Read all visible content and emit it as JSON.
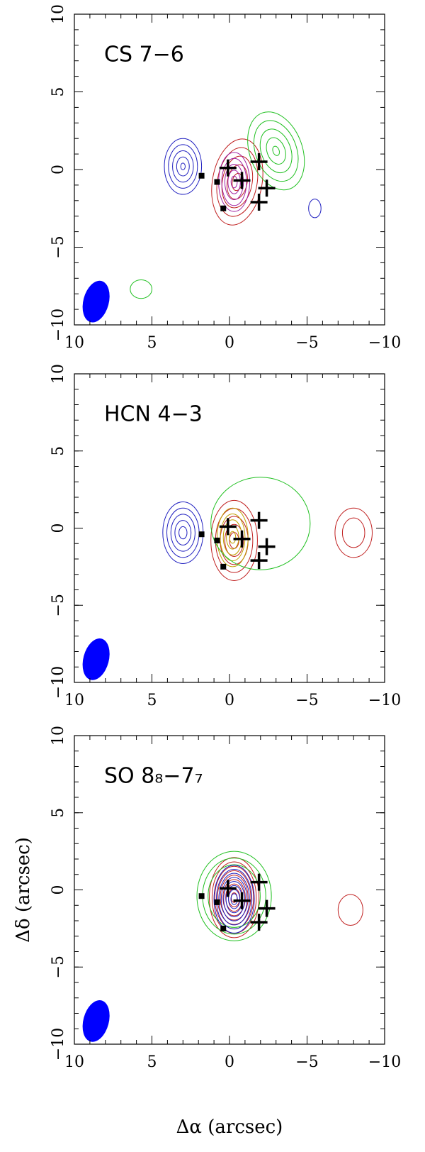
{
  "chart_data": [
    {
      "type": "scatter",
      "title": "CS 7−6",
      "xlim": [
        10,
        -10
      ],
      "ylim": [
        -10,
        10
      ],
      "xticks": [
        10,
        5,
        0,
        {
          "value": -5,
          "label": "−5"
        },
        {
          "value": -10,
          "label": "−10"
        }
      ],
      "yticks": [
        {
          "value": -10,
          "label": "−10"
        },
        {
          "value": -5,
          "label": "−5"
        },
        0,
        5,
        10
      ],
      "series": [
        {
          "marker": "square",
          "color": "#000000",
          "x": [
            1.8,
            0.8,
            0.4
          ],
          "y": [
            -0.4,
            -0.8,
            -2.5
          ]
        },
        {
          "marker": "cross",
          "color": "#000000",
          "x": [
            0.1,
            -0.8,
            -1.9,
            -2.4,
            -1.9
          ],
          "y": [
            0.1,
            -0.7,
            0.5,
            -1.2,
            -2.1
          ]
        }
      ]
    },
    {
      "type": "scatter",
      "title": "HCN 4−3",
      "xlim": [
        10,
        -10
      ],
      "ylim": [
        -10,
        10
      ],
      "xticks": [
        10,
        5,
        0,
        {
          "value": -5,
          "label": "−5"
        },
        {
          "value": -10,
          "label": "−10"
        }
      ],
      "yticks": [
        {
          "value": -10,
          "label": "−10"
        },
        {
          "value": -5,
          "label": "−5"
        },
        0,
        5,
        10
      ],
      "series": [
        {
          "marker": "square",
          "color": "#000000",
          "x": [
            1.8,
            0.8,
            0.4
          ],
          "y": [
            -0.4,
            -0.8,
            -2.5
          ]
        },
        {
          "marker": "cross",
          "color": "#000000",
          "x": [
            0.1,
            -0.8,
            -1.9,
            -2.4,
            -1.9
          ],
          "y": [
            0.1,
            -0.7,
            0.5,
            -1.2,
            -2.1
          ]
        }
      ]
    },
    {
      "type": "scatter",
      "title": "SO 8₈−7₇",
      "xlabel": "Δα (arcsec)",
      "ylabel": "Δδ (arcsec)",
      "xlim": [
        10,
        -10
      ],
      "ylim": [
        -10,
        10
      ],
      "xticks": [
        10,
        5,
        0,
        {
          "value": -5,
          "label": "−5"
        },
        {
          "value": -10,
          "label": "−10"
        }
      ],
      "yticks": [
        {
          "value": -10,
          "label": "−10"
        },
        {
          "value": -5,
          "label": "−5"
        },
        0,
        5,
        10
      ],
      "series": [
        {
          "marker": "square",
          "color": "#000000",
          "x": [
            1.8,
            0.8,
            0.4
          ],
          "y": [
            -0.4,
            -0.8,
            -2.5
          ]
        },
        {
          "marker": "cross",
          "color": "#000000",
          "x": [
            0.1,
            -0.8,
            -1.9,
            -2.4,
            -1.9
          ],
          "y": [
            0.1,
            -0.7,
            0.5,
            -1.2,
            -2.1
          ]
        }
      ]
    }
  ]
}
